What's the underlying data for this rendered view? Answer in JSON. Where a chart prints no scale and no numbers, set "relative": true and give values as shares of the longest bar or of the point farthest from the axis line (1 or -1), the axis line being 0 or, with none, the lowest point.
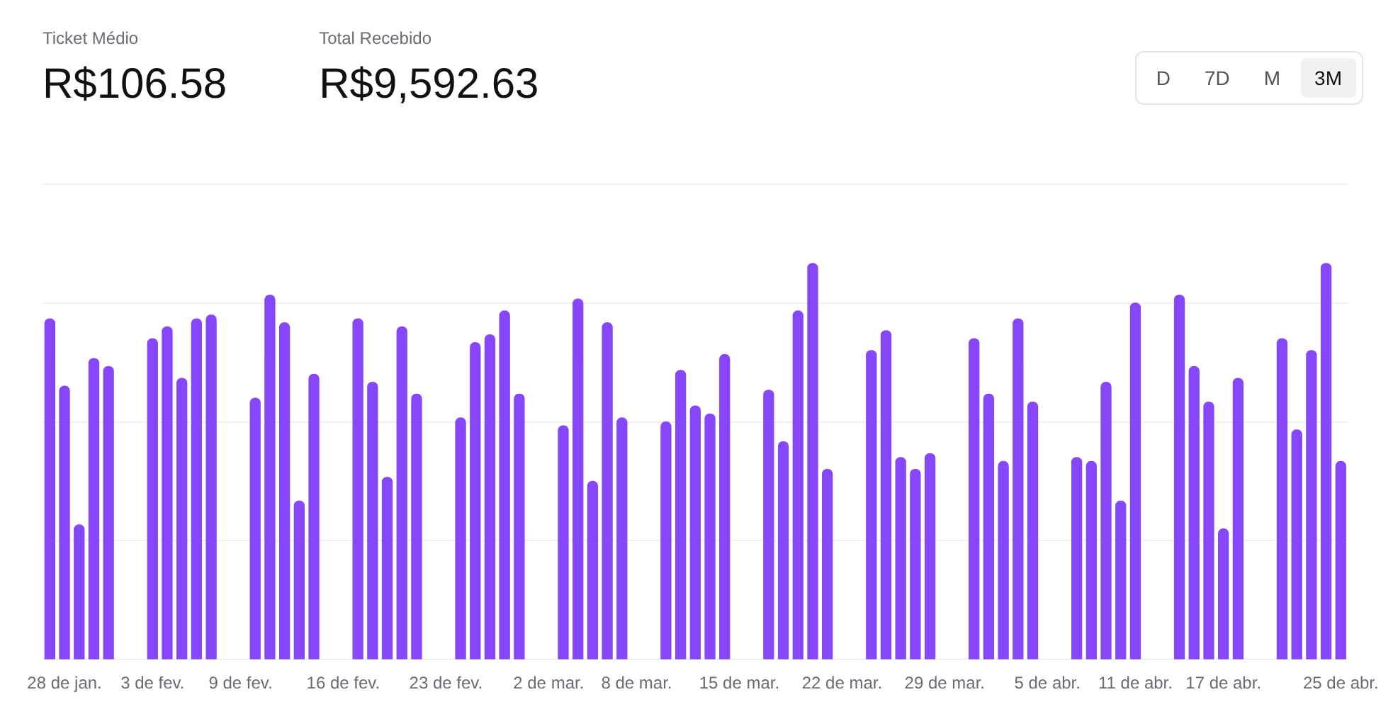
{
  "chart_data": {
    "type": "bar",
    "relative": true,
    "color": "#8547f9",
    "grid": "y",
    "annotations": [
      "Ticket Médio",
      "R$106.58",
      "Total Recebido",
      "R$9,592.63",
      "D",
      "7D",
      "M",
      "3M"
    ],
    "categories": [
      null,
      "28 de jan.",
      null,
      null,
      null,
      null,
      null,
      "3 de fev.",
      null,
      null,
      null,
      null,
      null,
      "9 de fev.",
      null,
      null,
      null,
      null,
      null,
      null,
      "16 de fev.",
      null,
      null,
      null,
      null,
      null,
      null,
      "23 de fev.",
      null,
      null,
      null,
      null,
      null,
      null,
      "2 de mar.",
      null,
      null,
      null,
      null,
      null,
      "8 de mar.",
      null,
      null,
      null,
      null,
      null,
      null,
      "15 de mar.",
      null,
      null,
      null,
      null,
      null,
      null,
      "22 de mar.",
      null,
      null,
      null,
      null,
      null,
      null,
      "29 de mar.",
      null,
      null,
      null,
      null,
      null,
      null,
      "5 de abr.",
      null,
      null,
      null,
      null,
      null,
      "11 de abr.",
      null,
      null,
      null,
      null,
      null,
      "17 de abr.",
      null,
      null,
      null,
      null,
      null,
      null,
      null,
      "25 de abr."
    ],
    "values": [
      0.86,
      0.69,
      0.34,
      0.76,
      0.74,
      null,
      null,
      0.81,
      0.84,
      0.71,
      0.86,
      0.87,
      null,
      null,
      0.66,
      0.92,
      0.85,
      0.4,
      0.72,
      null,
      null,
      0.86,
      0.7,
      0.46,
      0.84,
      0.67,
      null,
      null,
      0.61,
      0.8,
      0.82,
      0.88,
      0.67,
      null,
      null,
      0.59,
      0.91,
      0.45,
      0.85,
      0.61,
      null,
      null,
      0.6,
      0.73,
      0.64,
      0.62,
      0.77,
      null,
      null,
      0.68,
      0.55,
      0.88,
      1,
      0.48,
      null,
      null,
      0.78,
      0.83,
      0.51,
      0.48,
      0.52,
      null,
      null,
      0.81,
      0.67,
      0.5,
      0.86,
      0.65,
      null,
      null,
      0.51,
      0.5,
      0.7,
      0.4,
      0.9,
      null,
      null,
      0.92,
      0.74,
      0.65,
      0.33,
      0.71,
      null,
      null,
      0.81,
      0.58,
      0.78,
      1.0,
      0.5
    ]
  }
}
